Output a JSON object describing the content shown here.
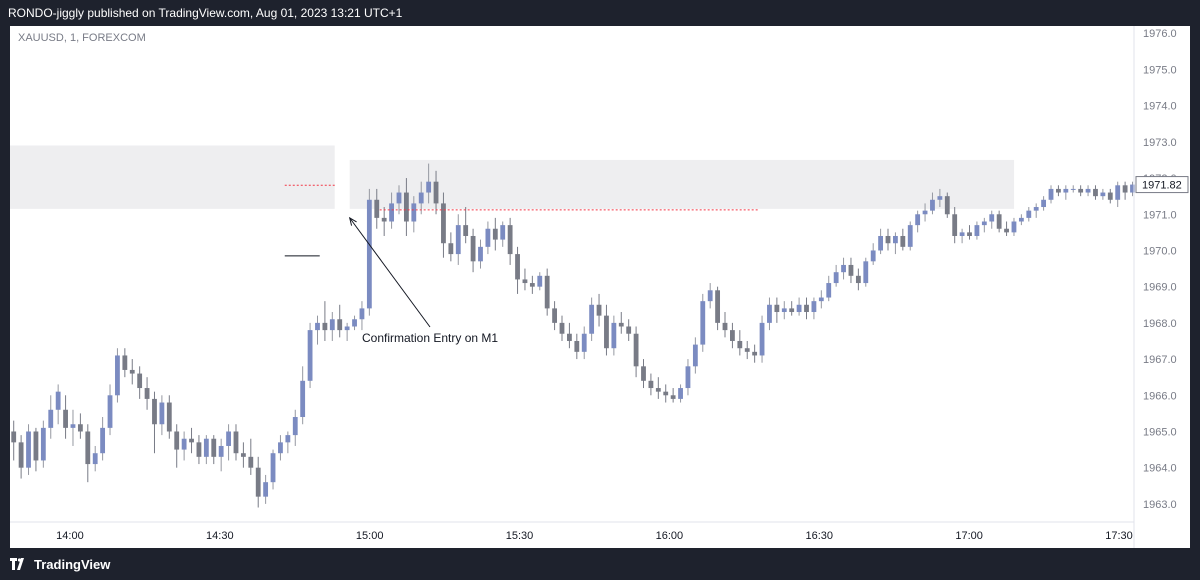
{
  "header": {
    "published_text": "RONDO-jiggly published on TradingView.com, Aug 01, 2023 13:21 UTC+1"
  },
  "chart_symbol": "XAUUSD, 1, FOREXCOM",
  "footer": {
    "brand": "TradingView",
    "logo_icon": "tradingview-logo-icon"
  },
  "colors": {
    "up": "#9598a1",
    "down": "#787b86",
    "upBody": "#7b8bc1",
    "zone": "#eeeef0",
    "level": "#f23645"
  },
  "chart_data": {
    "type": "candlestick",
    "title": "XAUUSD, 1, FOREXCOM",
    "xlabel": "",
    "ylabel": "",
    "x_ticks": [
      "14:00",
      "14:30",
      "15:00",
      "15:30",
      "16:00",
      "16:30",
      "17:00",
      "17:30"
    ],
    "y_ticks": [
      1963.0,
      1964.0,
      1965.0,
      1966.0,
      1967.0,
      1968.0,
      1969.0,
      1970.0,
      1971.0,
      1972.0,
      1973.0,
      1974.0,
      1975.0,
      1976.0
    ],
    "ylim": [
      1962.5,
      1976.2
    ],
    "time_range": [
      "13:48",
      "17:33"
    ],
    "last_price": "1971.82",
    "zones": [
      {
        "from": "13:48",
        "to": "14:53",
        "low": 1971.15,
        "high": 1972.9
      },
      {
        "from": "14:56",
        "to": "17:09",
        "low": 1971.15,
        "high": 1972.5
      }
    ],
    "levels": [
      {
        "from": "14:43",
        "to": "14:53",
        "price": 1971.8
      },
      {
        "from": "15:02",
        "to": "16:18",
        "price": 1971.12
      }
    ],
    "annotation": {
      "text": "Confirmation Entry on M1",
      "at_time": "14:56",
      "at_price": 1970.9,
      "line_price": 1969.85,
      "line_from": "14:43",
      "line_to": "14:50"
    },
    "candles": [
      [
        1965.0,
        1965.3,
        1964.2,
        1964.7
      ],
      [
        1964.7,
        1964.9,
        1963.7,
        1964.0
      ],
      [
        1964.0,
        1965.2,
        1963.8,
        1965.0
      ],
      [
        1965.0,
        1965.1,
        1963.9,
        1964.2
      ],
      [
        1964.2,
        1965.3,
        1964.0,
        1965.1
      ],
      [
        1965.1,
        1966.0,
        1964.8,
        1965.6
      ],
      [
        1965.6,
        1966.3,
        1965.2,
        1966.1
      ],
      [
        1965.6,
        1966.0,
        1964.8,
        1965.1
      ],
      [
        1965.1,
        1965.6,
        1964.6,
        1965.2
      ],
      [
        1965.2,
        1965.5,
        1964.8,
        1965.0
      ],
      [
        1965.0,
        1965.2,
        1963.6,
        1964.1
      ],
      [
        1964.1,
        1964.6,
        1963.9,
        1964.4
      ],
      [
        1964.4,
        1965.4,
        1964.2,
        1965.1
      ],
      [
        1965.1,
        1966.3,
        1964.9,
        1966.0
      ],
      [
        1966.0,
        1967.3,
        1965.8,
        1967.1
      ],
      [
        1967.1,
        1967.3,
        1966.5,
        1966.7
      ],
      [
        1966.7,
        1967.0,
        1966.3,
        1966.6
      ],
      [
        1966.6,
        1966.8,
        1965.9,
        1966.2
      ],
      [
        1966.2,
        1966.5,
        1965.6,
        1965.9
      ],
      [
        1965.9,
        1966.1,
        1964.4,
        1965.2
      ],
      [
        1965.2,
        1966.0,
        1964.9,
        1965.8
      ],
      [
        1965.8,
        1966.0,
        1964.8,
        1965.0
      ],
      [
        1965.0,
        1965.2,
        1964.0,
        1964.5
      ],
      [
        1964.5,
        1965.0,
        1964.2,
        1964.8
      ],
      [
        1964.8,
        1965.1,
        1964.4,
        1964.7
      ],
      [
        1964.7,
        1964.9,
        1964.1,
        1964.3
      ],
      [
        1964.3,
        1964.9,
        1964.1,
        1964.8
      ],
      [
        1964.8,
        1964.9,
        1964.1,
        1964.3
      ],
      [
        1964.3,
        1964.8,
        1963.9,
        1964.6
      ],
      [
        1964.6,
        1965.2,
        1964.2,
        1965.0
      ],
      [
        1965.0,
        1965.2,
        1964.2,
        1964.4
      ],
      [
        1964.4,
        1964.7,
        1964.0,
        1964.3
      ],
      [
        1964.3,
        1964.8,
        1963.8,
        1964.0
      ],
      [
        1964.0,
        1964.3,
        1962.9,
        1963.2
      ],
      [
        1963.2,
        1963.8,
        1963.0,
        1963.6
      ],
      [
        1963.6,
        1964.5,
        1963.4,
        1964.4
      ],
      [
        1964.4,
        1964.9,
        1964.2,
        1964.7
      ],
      [
        1964.7,
        1965.0,
        1964.4,
        1964.9
      ],
      [
        1964.9,
        1965.6,
        1964.6,
        1965.4
      ],
      [
        1965.4,
        1966.8,
        1965.2,
        1966.4
      ],
      [
        1966.4,
        1968.0,
        1966.2,
        1967.8
      ],
      [
        1967.8,
        1968.2,
        1967.4,
        1968.0
      ],
      [
        1968.0,
        1968.6,
        1967.5,
        1967.8
      ],
      [
        1967.8,
        1968.3,
        1967.5,
        1968.1
      ],
      [
        1968.1,
        1968.5,
        1967.6,
        1967.8
      ],
      [
        1967.8,
        1968.0,
        1967.5,
        1967.9
      ],
      [
        1967.9,
        1968.2,
        1967.8,
        1968.1
      ],
      [
        1968.1,
        1968.6,
        1967.8,
        1968.4
      ],
      [
        1968.4,
        1971.7,
        1968.2,
        1971.4
      ],
      [
        1971.4,
        1971.7,
        1970.6,
        1970.9
      ],
      [
        1970.9,
        1971.2,
        1970.4,
        1970.8
      ],
      [
        1970.8,
        1971.6,
        1970.6,
        1971.3
      ],
      [
        1971.3,
        1971.8,
        1971.0,
        1971.6
      ],
      [
        1971.6,
        1972.0,
        1970.4,
        1970.8
      ],
      [
        1970.8,
        1971.5,
        1970.5,
        1971.3
      ],
      [
        1971.3,
        1971.9,
        1971.0,
        1971.6
      ],
      [
        1971.6,
        1972.4,
        1971.3,
        1971.9
      ],
      [
        1971.9,
        1972.2,
        1971.0,
        1971.3
      ],
      [
        1971.3,
        1971.6,
        1969.8,
        1970.2
      ],
      [
        1970.2,
        1970.5,
        1969.7,
        1969.9
      ],
      [
        1969.9,
        1971.0,
        1969.6,
        1970.7
      ],
      [
        1970.7,
        1971.2,
        1970.2,
        1970.4
      ],
      [
        1970.4,
        1970.6,
        1969.4,
        1969.7
      ],
      [
        1969.7,
        1970.3,
        1969.5,
        1970.1
      ],
      [
        1970.1,
        1970.8,
        1969.9,
        1970.6
      ],
      [
        1970.6,
        1970.9,
        1970.0,
        1970.3
      ],
      [
        1970.3,
        1970.8,
        1970.1,
        1970.7
      ],
      [
        1970.7,
        1970.9,
        1969.6,
        1969.9
      ],
      [
        1969.9,
        1970.1,
        1968.8,
        1969.2
      ],
      [
        1969.2,
        1969.5,
        1968.9,
        1969.1
      ],
      [
        1969.1,
        1969.3,
        1968.8,
        1969.0
      ],
      [
        1969.0,
        1969.4,
        1968.9,
        1969.3
      ],
      [
        1969.3,
        1969.5,
        1968.2,
        1968.4
      ],
      [
        1968.4,
        1968.6,
        1967.8,
        1968.0
      ],
      [
        1968.0,
        1968.2,
        1967.5,
        1967.7
      ],
      [
        1967.7,
        1968.0,
        1967.3,
        1967.5
      ],
      [
        1967.5,
        1967.7,
        1967.0,
        1967.2
      ],
      [
        1967.2,
        1967.9,
        1967.0,
        1967.7
      ],
      [
        1967.7,
        1968.7,
        1967.5,
        1968.5
      ],
      [
        1968.5,
        1968.8,
        1967.9,
        1968.2
      ],
      [
        1968.2,
        1968.5,
        1967.1,
        1967.3
      ],
      [
        1967.3,
        1968.2,
        1967.1,
        1968.0
      ],
      [
        1968.0,
        1968.3,
        1967.7,
        1967.9
      ],
      [
        1967.9,
        1968.1,
        1967.5,
        1967.7
      ],
      [
        1967.7,
        1967.9,
        1966.5,
        1966.8
      ],
      [
        1966.8,
        1967.0,
        1966.2,
        1966.4
      ],
      [
        1966.4,
        1966.6,
        1966.0,
        1966.2
      ],
      [
        1966.2,
        1966.5,
        1965.9,
        1966.1
      ],
      [
        1966.1,
        1966.3,
        1965.8,
        1966.0
      ],
      [
        1966.0,
        1966.2,
        1965.8,
        1965.9
      ],
      [
        1965.9,
        1966.3,
        1965.8,
        1966.2
      ],
      [
        1966.2,
        1967.0,
        1966.0,
        1966.8
      ],
      [
        1966.8,
        1967.6,
        1966.6,
        1967.4
      ],
      [
        1967.4,
        1968.8,
        1967.2,
        1968.6
      ],
      [
        1968.6,
        1969.1,
        1968.4,
        1968.9
      ],
      [
        1968.9,
        1969.0,
        1967.8,
        1968.0
      ],
      [
        1968.0,
        1968.3,
        1967.6,
        1967.8
      ],
      [
        1967.8,
        1968.0,
        1967.3,
        1967.5
      ],
      [
        1967.5,
        1967.8,
        1967.1,
        1967.3
      ],
      [
        1967.3,
        1967.5,
        1967.0,
        1967.2
      ],
      [
        1967.2,
        1967.4,
        1966.9,
        1967.1
      ],
      [
        1967.1,
        1968.2,
        1966.9,
        1968.0
      ],
      [
        1968.0,
        1968.7,
        1967.8,
        1968.5
      ],
      [
        1968.5,
        1968.7,
        1968.0,
        1968.3
      ],
      [
        1968.3,
        1968.6,
        1968.1,
        1968.4
      ],
      [
        1968.4,
        1968.6,
        1968.2,
        1968.3
      ],
      [
        1968.3,
        1968.7,
        1968.2,
        1968.5
      ],
      [
        1968.5,
        1968.7,
        1968.1,
        1968.3
      ],
      [
        1968.3,
        1968.7,
        1968.1,
        1968.6
      ],
      [
        1968.6,
        1968.9,
        1968.4,
        1968.7
      ],
      [
        1968.7,
        1969.3,
        1968.6,
        1969.1
      ],
      [
        1969.1,
        1969.6,
        1969.0,
        1969.4
      ],
      [
        1969.4,
        1969.8,
        1969.2,
        1969.6
      ],
      [
        1969.6,
        1969.8,
        1969.1,
        1969.3
      ],
      [
        1969.3,
        1969.5,
        1968.9,
        1969.1
      ],
      [
        1969.1,
        1969.8,
        1969.0,
        1969.7
      ],
      [
        1969.7,
        1970.2,
        1969.6,
        1970.0
      ],
      [
        1970.0,
        1970.6,
        1969.9,
        1970.4
      ],
      [
        1970.4,
        1970.6,
        1970.0,
        1970.2
      ],
      [
        1970.2,
        1970.5,
        1969.9,
        1970.4
      ],
      [
        1970.4,
        1970.6,
        1970.0,
        1970.1
      ],
      [
        1970.1,
        1970.8,
        1970.0,
        1970.7
      ],
      [
        1970.7,
        1971.1,
        1970.5,
        1971.0
      ],
      [
        1971.0,
        1971.3,
        1970.8,
        1971.1
      ],
      [
        1971.1,
        1971.6,
        1971.0,
        1971.4
      ],
      [
        1971.4,
        1971.7,
        1971.2,
        1971.5
      ],
      [
        1971.5,
        1971.6,
        1970.9,
        1971.0
      ],
      [
        1971.0,
        1971.2,
        1970.2,
        1970.4
      ],
      [
        1970.4,
        1970.6,
        1970.2,
        1970.5
      ],
      [
        1970.5,
        1970.7,
        1970.3,
        1970.4
      ],
      [
        1970.4,
        1970.8,
        1970.3,
        1970.7
      ],
      [
        1970.7,
        1970.9,
        1970.5,
        1970.8
      ],
      [
        1970.8,
        1971.1,
        1970.6,
        1971.0
      ],
      [
        1971.0,
        1971.1,
        1970.5,
        1970.6
      ],
      [
        1970.6,
        1970.8,
        1970.4,
        1970.5
      ],
      [
        1970.5,
        1970.9,
        1970.4,
        1970.8
      ],
      [
        1970.8,
        1971.0,
        1970.7,
        1970.9
      ],
      [
        1970.9,
        1971.2,
        1970.8,
        1971.1
      ],
      [
        1971.1,
        1971.3,
        1970.9,
        1971.2
      ],
      [
        1971.2,
        1971.5,
        1971.1,
        1971.4
      ],
      [
        1971.4,
        1971.8,
        1971.3,
        1971.7
      ],
      [
        1971.7,
        1971.8,
        1971.5,
        1971.6
      ],
      [
        1971.6,
        1971.8,
        1971.4,
        1971.7
      ],
      [
        1971.7,
        1971.8,
        1971.6,
        1971.7
      ],
      [
        1971.7,
        1971.8,
        1971.5,
        1971.6
      ],
      [
        1971.6,
        1971.8,
        1971.5,
        1971.7
      ],
      [
        1971.7,
        1971.8,
        1971.4,
        1971.5
      ],
      [
        1971.5,
        1971.7,
        1971.4,
        1971.6
      ],
      [
        1971.6,
        1971.7,
        1971.3,
        1971.4
      ],
      [
        1971.4,
        1971.9,
        1971.2,
        1971.8
      ],
      [
        1971.8,
        1971.9,
        1971.4,
        1971.6
      ],
      [
        1971.6,
        1971.9,
        1971.5,
        1971.82
      ]
    ]
  }
}
